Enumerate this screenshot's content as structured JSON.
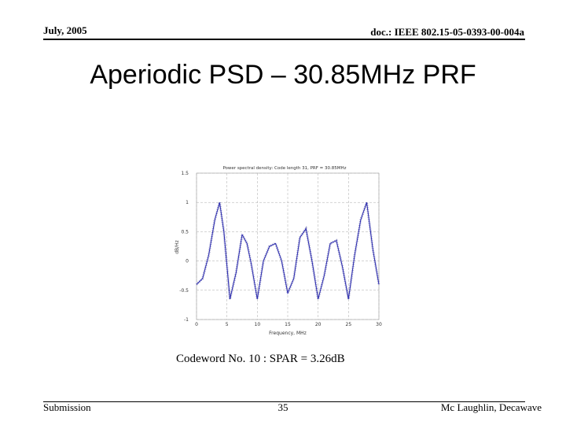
{
  "header": {
    "date": "July, 2005",
    "doc_id": "doc.: IEEE 802.15-05-0393-00-004a"
  },
  "slide": {
    "title": "Aperiodic PSD – 30.85MHz PRF",
    "caption": "Codeword No. 10 : SPAR = 3.26dB"
  },
  "footer": {
    "left": "Submission",
    "page": "35",
    "author": "Mc Laughlin, Decawave"
  },
  "chart_data": {
    "type": "line",
    "title": "Power spectral density: Code length 31, PRF = 30.85MHz",
    "xlabel": "Frequency, MHz",
    "ylabel": "dB/Hz",
    "xlim": [
      0,
      30
    ],
    "ylim": [
      -1,
      1.5
    ],
    "xticks": [
      "0",
      "5",
      "10",
      "15",
      "20",
      "25",
      "30"
    ],
    "yticks": [
      "1.5",
      "1",
      "0.5",
      "0",
      "-0.5",
      "-1"
    ],
    "grid": true,
    "series": [
      {
        "color": "#2b2bb0",
        "x": [
          0,
          1,
          2,
          3,
          3.8,
          4.5,
          5.5,
          6.5,
          7.5,
          8.3,
          9,
          10,
          11,
          12,
          13,
          14,
          15,
          16,
          17,
          18,
          19,
          20,
          21,
          22,
          23,
          24,
          25,
          26,
          27,
          28,
          29,
          30
        ],
        "y": [
          -0.4,
          -0.3,
          0.1,
          0.7,
          1.0,
          0.5,
          -0.65,
          -0.2,
          0.45,
          0.3,
          -0.05,
          -0.65,
          0.0,
          0.25,
          0.3,
          0.0,
          -0.55,
          -0.3,
          0.4,
          0.55,
          0.0,
          -0.65,
          -0.25,
          0.3,
          0.35,
          -0.1,
          -0.65,
          0.1,
          0.7,
          1.0,
          0.2,
          -0.4
        ]
      }
    ]
  }
}
